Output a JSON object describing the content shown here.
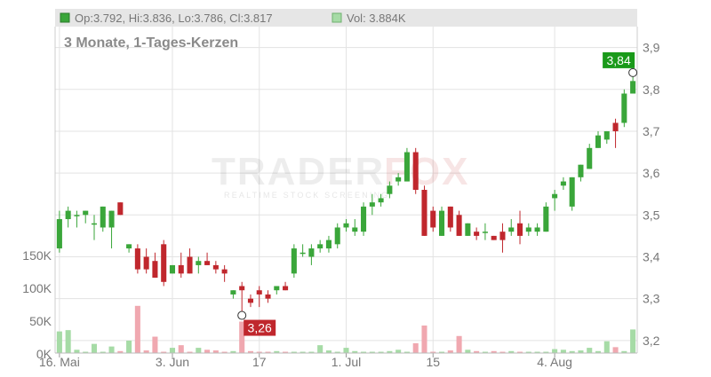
{
  "header": {
    "ohlc_text": "Op:3.792, Hi:3.836, Lo:3.786, Cl:3.817",
    "vol_text": "Vol: 3.884K",
    "subtitle": "3 Monate, 1-Tages-Kerzen"
  },
  "watermark": {
    "brand_a": "TRADER",
    "brand_b": "FOX",
    "tagline": "REALTIME STOCK SCREENING"
  },
  "colors": {
    "up": "#3aa63a",
    "down": "#c0272d",
    "vol_up": "#a6dba6",
    "vol_down": "#f0a8b0",
    "grid": "#e3e3e3",
    "header_bg": "#e6e6e6",
    "axis_text": "#777777",
    "high_marker": "#1a9a1a",
    "low_marker": "#c0272d"
  },
  "chart_data": {
    "type": "candlestick",
    "price_axis": {
      "ticks": [
        "3,2",
        "3,3",
        "3,4",
        "3,5",
        "3,6",
        "3,7",
        "3,8",
        "3,9"
      ],
      "values": [
        3.2,
        3.3,
        3.4,
        3.5,
        3.6,
        3.7,
        3.8,
        3.9
      ],
      "ylim": [
        3.17,
        3.95
      ]
    },
    "volume_axis": {
      "ticks": [
        "0K",
        "50K",
        "100K",
        "150K"
      ],
      "values": [
        0,
        50,
        100,
        150
      ],
      "ylim": [
        0,
        180
      ]
    },
    "x_ticks": [
      {
        "label": "16. Mai",
        "index": 0
      },
      {
        "label": "3. Jun",
        "index": 13
      },
      {
        "label": "17",
        "index": 23
      },
      {
        "label": "1. Jul",
        "index": 33
      },
      {
        "label": "15",
        "index": 43
      },
      {
        "label": "4. Aug",
        "index": 57
      }
    ],
    "high_marker": {
      "label": "3,84",
      "value": 3.84,
      "index": 66
    },
    "low_marker": {
      "label": "3,26",
      "value": 3.26,
      "index": 21
    },
    "candles": [
      [
        3.42,
        3.51,
        3.41,
        3.49
      ],
      [
        3.49,
        3.52,
        3.47,
        3.51
      ],
      [
        3.5,
        3.51,
        3.47,
        3.5
      ],
      [
        3.5,
        3.51,
        3.48,
        3.51
      ],
      [
        3.48,
        3.5,
        3.44,
        3.48
      ],
      [
        3.47,
        3.52,
        3.46,
        3.52
      ],
      [
        3.47,
        3.51,
        3.42,
        3.51
      ],
      [
        3.53,
        3.53,
        3.5,
        3.5
      ],
      [
        3.42,
        3.43,
        3.41,
        3.43
      ],
      [
        3.42,
        3.43,
        3.36,
        3.37
      ],
      [
        3.4,
        3.42,
        3.36,
        3.37
      ],
      [
        3.39,
        3.41,
        3.35,
        3.35
      ],
      [
        3.43,
        3.44,
        3.33,
        3.34
      ],
      [
        3.36,
        3.38,
        3.36,
        3.38
      ],
      [
        3.38,
        3.41,
        3.35,
        3.36
      ],
      [
        3.4,
        3.42,
        3.36,
        3.36
      ],
      [
        3.38,
        3.4,
        3.36,
        3.39
      ],
      [
        3.39,
        3.41,
        3.38,
        3.38
      ],
      [
        3.38,
        3.39,
        3.36,
        3.37
      ],
      [
        3.37,
        3.38,
        3.34,
        3.36
      ],
      [
        3.31,
        3.32,
        3.3,
        3.32
      ],
      [
        3.33,
        3.34,
        3.26,
        3.32
      ],
      [
        3.3,
        3.31,
        3.28,
        3.29
      ],
      [
        3.32,
        3.33,
        3.28,
        3.31
      ],
      [
        3.31,
        3.32,
        3.29,
        3.3
      ],
      [
        3.32,
        3.33,
        3.31,
        3.33
      ],
      [
        3.33,
        3.34,
        3.32,
        3.32
      ],
      [
        3.36,
        3.43,
        3.35,
        3.42
      ],
      [
        3.41,
        3.43,
        3.4,
        3.41
      ],
      [
        3.4,
        3.43,
        3.38,
        3.42
      ],
      [
        3.42,
        3.44,
        3.41,
        3.43
      ],
      [
        3.42,
        3.45,
        3.41,
        3.44
      ],
      [
        3.43,
        3.48,
        3.42,
        3.47
      ],
      [
        3.47,
        3.49,
        3.46,
        3.48
      ],
      [
        3.46,
        3.49,
        3.45,
        3.47
      ],
      [
        3.46,
        3.53,
        3.45,
        3.52
      ],
      [
        3.52,
        3.55,
        3.5,
        3.53
      ],
      [
        3.53,
        3.55,
        3.52,
        3.54
      ],
      [
        3.55,
        3.58,
        3.54,
        3.57
      ],
      [
        3.58,
        3.6,
        3.57,
        3.59
      ],
      [
        3.58,
        3.66,
        3.58,
        3.65
      ],
      [
        3.65,
        3.66,
        3.55,
        3.56
      ],
      [
        3.56,
        3.57,
        3.45,
        3.45
      ],
      [
        3.51,
        3.52,
        3.46,
        3.47
      ],
      [
        3.45,
        3.52,
        3.45,
        3.51
      ],
      [
        3.52,
        3.52,
        3.46,
        3.47
      ],
      [
        3.5,
        3.51,
        3.45,
        3.45
      ],
      [
        3.45,
        3.48,
        3.45,
        3.48
      ],
      [
        3.46,
        3.47,
        3.44,
        3.45
      ],
      [
        3.46,
        3.48,
        3.44,
        3.46
      ],
      [
        3.45,
        3.45,
        3.44,
        3.44
      ],
      [
        3.46,
        3.48,
        3.41,
        3.44
      ],
      [
        3.46,
        3.49,
        3.45,
        3.47
      ],
      [
        3.48,
        3.51,
        3.43,
        3.45
      ],
      [
        3.46,
        3.48,
        3.45,
        3.47
      ],
      [
        3.46,
        3.48,
        3.45,
        3.47
      ],
      [
        3.46,
        3.53,
        3.46,
        3.52
      ],
      [
        3.54,
        3.56,
        3.51,
        3.55
      ],
      [
        3.57,
        3.59,
        3.56,
        3.58
      ],
      [
        3.52,
        3.59,
        3.51,
        3.59
      ],
      [
        3.59,
        3.62,
        3.58,
        3.62
      ],
      [
        3.61,
        3.67,
        3.61,
        3.66
      ],
      [
        3.66,
        3.7,
        3.66,
        3.69
      ],
      [
        3.68,
        3.7,
        3.67,
        3.7
      ],
      [
        3.72,
        3.73,
        3.66,
        3.7
      ],
      [
        3.72,
        3.8,
        3.71,
        3.79
      ],
      [
        3.79,
        3.84,
        3.79,
        3.82
      ]
    ],
    "volume": [
      33,
      35,
      5,
      2,
      14,
      2,
      10,
      3,
      19,
      72,
      4,
      25,
      2,
      8,
      12,
      2,
      8,
      5,
      4,
      2,
      3,
      48,
      3,
      2,
      2,
      3,
      2,
      2,
      2,
      2,
      12,
      4,
      2,
      8,
      3,
      2,
      2,
      2,
      3,
      5,
      2,
      15,
      42,
      2,
      2,
      4,
      26,
      5,
      3,
      2,
      3,
      2,
      3,
      2,
      2,
      2,
      2,
      6,
      5,
      3,
      4,
      8,
      3,
      18,
      9,
      3,
      36
    ]
  }
}
